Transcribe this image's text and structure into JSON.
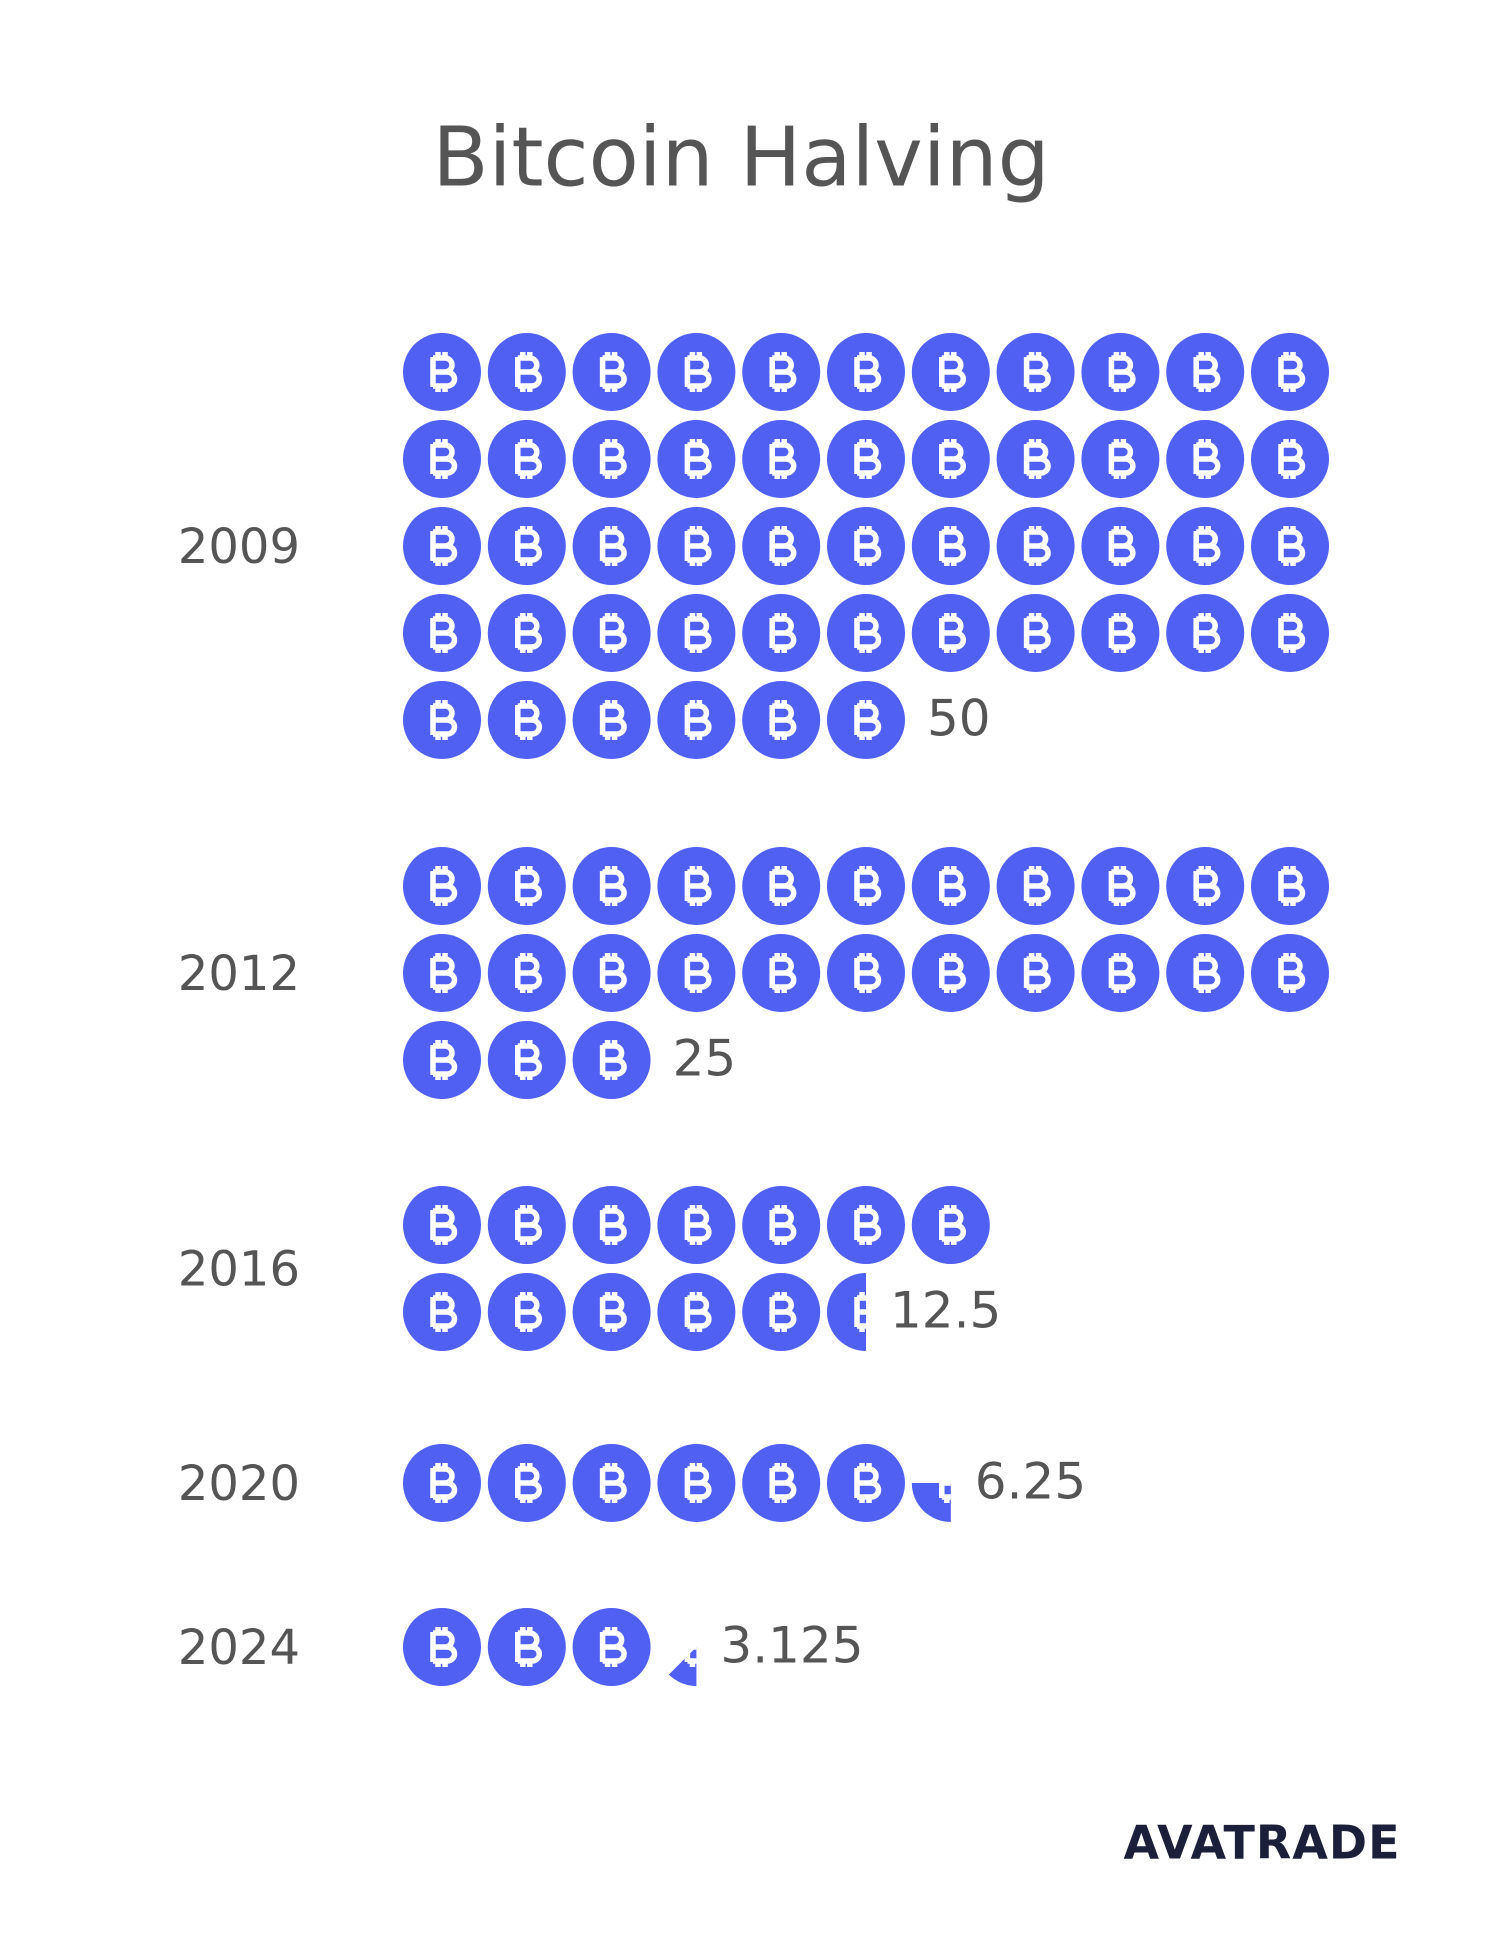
{
  "chart_data": {
    "type": "pictogram",
    "title": "Bitcoin Halving",
    "categories": [
      "2009",
      "2012",
      "2016",
      "2020",
      "2024"
    ],
    "values": [
      50,
      25,
      12.5,
      6.25,
      3.125
    ],
    "color": "#5060f2",
    "logo": "AVATRADE"
  }
}
